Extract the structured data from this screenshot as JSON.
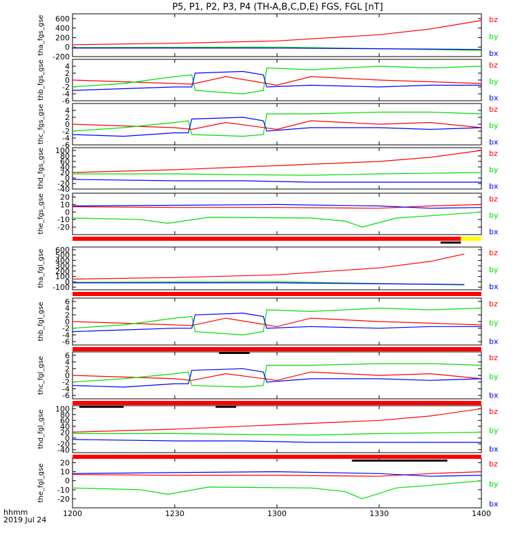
{
  "title": "P5, P1, P2, P3, P4 (TH-A,B,C,D,E) FGS, FGL [nT]",
  "xaxis": {
    "label_line1": "hhmm",
    "label_line2": "2019 Jul 24",
    "range_minutes": [
      720,
      840
    ],
    "ticks": [
      {
        "value": 720,
        "label": "1200"
      },
      {
        "value": 750,
        "label": "1230"
      },
      {
        "value": 780,
        "label": "1300"
      },
      {
        "value": 810,
        "label": "1330"
      },
      {
        "value": 840,
        "label": "1400"
      }
    ]
  },
  "colors": {
    "bx": "#0000ff",
    "by": "#00dd00",
    "bz": "#ff0000",
    "status_red": "#ff0000",
    "status_yellow": "#ffff00",
    "status_black": "#000000"
  },
  "chart_data": [
    {
      "type": "line",
      "ylabel": "tha_fgs_gse",
      "ylim": [
        -200,
        700
      ],
      "ticks": [
        {
          "v": 600,
          "l": "600"
        },
        {
          "v": 400,
          "l": "400"
        },
        {
          "v": 200,
          "l": "200"
        },
        {
          "v": 0,
          "l": "0"
        },
        {
          "v": -200,
          "l": "-200"
        }
      ],
      "series": [
        {
          "name": "bz",
          "color": "#ff0000",
          "x": [
            720,
            750,
            780,
            810,
            825,
            840
          ],
          "y": [
            50,
            80,
            130,
            260,
            380,
            560
          ]
        },
        {
          "name": "by",
          "color": "#00dd00",
          "x": [
            720,
            780,
            840
          ],
          "y": [
            -10,
            0,
            -70
          ]
        },
        {
          "name": "bx",
          "color": "#0000ff",
          "x": [
            720,
            780,
            840
          ],
          "y": [
            -20,
            -20,
            -50
          ]
        }
      ]
    },
    {
      "type": "line",
      "ylabel": "thb_fgs_gse",
      "ylim": [
        -6,
        6
      ],
      "ticks": [
        {
          "v": 4,
          "l": "4"
        },
        {
          "v": 2,
          "l": "2"
        },
        {
          "v": 0,
          "l": "0"
        },
        {
          "v": -2,
          "l": "-2"
        },
        {
          "v": -4,
          "l": "-4"
        },
        {
          "v": -6,
          "l": "-6"
        }
      ],
      "series": [
        {
          "name": "bz",
          "color": "#ff0000",
          "x": [
            720,
            735,
            750,
            755,
            765,
            780,
            790,
            800,
            810,
            825,
            840
          ],
          "y": [
            0,
            -0.5,
            -1,
            -1.2,
            1,
            -1.5,
            1,
            0.5,
            0,
            -0.5,
            -1
          ]
        },
        {
          "name": "by",
          "color": "#00dd00",
          "x": [
            720,
            735,
            750,
            755,
            756,
            770,
            776,
            777,
            790,
            810,
            825,
            840
          ],
          "y": [
            -2,
            -1,
            1,
            1.5,
            -3,
            -4,
            -3,
            3.5,
            3,
            4,
            3.5,
            4
          ]
        },
        {
          "name": "bx",
          "color": "#0000ff",
          "x": [
            720,
            735,
            750,
            755,
            756,
            770,
            776,
            777,
            790,
            810,
            825,
            840
          ],
          "y": [
            -3,
            -2.5,
            -2,
            -2,
            2,
            2.5,
            1.5,
            -2,
            -1.5,
            -2,
            -1.5,
            -1.5
          ]
        }
      ]
    },
    {
      "type": "line",
      "ylabel": "thc_fgs_gse",
      "ylim": [
        -6,
        6
      ],
      "ticks": [
        {
          "v": 4,
          "l": "4"
        },
        {
          "v": 2,
          "l": "2"
        },
        {
          "v": 0,
          "l": "0"
        },
        {
          "v": -2,
          "l": "-2"
        },
        {
          "v": -4,
          "l": "-4"
        },
        {
          "v": -6,
          "l": "-6"
        }
      ],
      "series": [
        {
          "name": "bz",
          "color": "#ff0000",
          "x": [
            720,
            735,
            750,
            755,
            765,
            780,
            790,
            800,
            810,
            825,
            840
          ],
          "y": [
            0,
            -0.5,
            -1,
            -1.5,
            0.5,
            -1.5,
            1,
            0.5,
            0,
            0.5,
            -1
          ]
        },
        {
          "name": "by",
          "color": "#00dd00",
          "x": [
            720,
            735,
            750,
            754,
            755,
            770,
            776,
            777,
            790,
            810,
            825,
            840
          ],
          "y": [
            -2,
            -1,
            0.5,
            1,
            -3,
            -3.5,
            -3,
            3,
            3,
            3.5,
            3.5,
            3
          ]
        },
        {
          "name": "bx",
          "color": "#0000ff",
          "x": [
            720,
            735,
            750,
            754,
            755,
            770,
            776,
            777,
            790,
            810,
            825,
            840
          ],
          "y": [
            -3,
            -3.5,
            -2.5,
            -2.5,
            1.5,
            2,
            1,
            -2,
            -1,
            -1,
            -1.5,
            -1
          ]
        }
      ]
    },
    {
      "type": "line",
      "ylabel": "thd_fgs_gse",
      "ylim": [
        -40,
        110
      ],
      "ticks": [
        {
          "v": 100,
          "l": "100"
        },
        {
          "v": 80,
          "l": "80"
        },
        {
          "v": 60,
          "l": "60"
        },
        {
          "v": 40,
          "l": "40"
        },
        {
          "v": 20,
          "l": "20"
        },
        {
          "v": 0,
          "l": "0"
        },
        {
          "v": -20,
          "l": "-20"
        },
        {
          "v": -40,
          "l": "-40"
        }
      ],
      "series": [
        {
          "name": "bz",
          "color": "#ff0000",
          "x": [
            720,
            750,
            780,
            810,
            825,
            840
          ],
          "y": [
            20,
            30,
            45,
            60,
            75,
            100
          ]
        },
        {
          "name": "by",
          "color": "#00dd00",
          "x": [
            720,
            750,
            770,
            790,
            810,
            840
          ],
          "y": [
            15,
            15,
            12,
            10,
            15,
            20
          ]
        },
        {
          "name": "bx",
          "color": "#0000ff",
          "x": [
            720,
            750,
            770,
            790,
            810,
            840
          ],
          "y": [
            -5,
            -10,
            -10,
            -15,
            -15,
            -15
          ]
        }
      ]
    },
    {
      "type": "line",
      "ylabel": "the_fgs_gse",
      "ylim": [
        -30,
        25
      ],
      "ticks": [
        {
          "v": 20,
          "l": "20"
        },
        {
          "v": 10,
          "l": "10"
        },
        {
          "v": 0,
          "l": "0"
        },
        {
          "v": -10,
          "l": "-10"
        },
        {
          "v": -20,
          "l": "-20"
        }
      ],
      "series": [
        {
          "name": "bz",
          "color": "#ff0000",
          "x": [
            720,
            750,
            780,
            810,
            825,
            840
          ],
          "y": [
            7,
            6,
            6,
            5,
            8,
            10
          ]
        },
        {
          "name": "by",
          "color": "#00dd00",
          "x": [
            720,
            740,
            748,
            760,
            790,
            800,
            805,
            815,
            825,
            840
          ],
          "y": [
            -8,
            -10,
            -15,
            -7,
            -8,
            -12,
            -20,
            -8,
            -5,
            0
          ]
        },
        {
          "name": "bx",
          "color": "#0000ff",
          "x": [
            720,
            750,
            780,
            810,
            825,
            840
          ],
          "y": [
            8,
            9,
            10,
            8,
            5,
            6
          ]
        }
      ]
    },
    {
      "type": "line",
      "ylabel": "tha_fgl_gse",
      "ylim": [
        -150,
        650
      ],
      "ticks": [
        {
          "v": 600,
          "l": "600"
        },
        {
          "v": 500,
          "l": "500"
        },
        {
          "v": 400,
          "l": "400"
        },
        {
          "v": 300,
          "l": "300"
        },
        {
          "v": 200,
          "l": "200"
        },
        {
          "v": 100,
          "l": "100"
        },
        {
          "v": 0,
          "l": "0"
        },
        {
          "v": -100,
          "l": "-100"
        }
      ],
      "series": [
        {
          "name": "bz",
          "color": "#ff0000",
          "x": [
            720,
            750,
            780,
            810,
            825,
            835
          ],
          "y": [
            50,
            80,
            130,
            260,
            380,
            520
          ]
        },
        {
          "name": "by",
          "color": "#00dd00",
          "x": [
            720,
            780,
            835
          ],
          "y": [
            -10,
            0,
            -60
          ]
        },
        {
          "name": "bx",
          "color": "#0000ff",
          "x": [
            720,
            780,
            835
          ],
          "y": [
            -20,
            -20,
            -50
          ]
        }
      ]
    },
    {
      "type": "line",
      "ylabel": "thb_fgl_gse",
      "ylim": [
        -7,
        7
      ],
      "ticks": [
        {
          "v": 6,
          "l": "6"
        },
        {
          "v": 4,
          "l": "4"
        },
        {
          "v": 2,
          "l": "2"
        },
        {
          "v": 0,
          "l": "0"
        },
        {
          "v": -2,
          "l": "-2"
        },
        {
          "v": -4,
          "l": "-4"
        },
        {
          "v": -6,
          "l": "-6"
        }
      ],
      "series": [
        {
          "name": "bz",
          "color": "#ff0000",
          "x": [
            720,
            735,
            750,
            755,
            765,
            780,
            790,
            800,
            810,
            825,
            840
          ],
          "y": [
            0,
            -0.5,
            -1,
            -1.2,
            1,
            -1.5,
            1,
            0.5,
            0,
            -0.5,
            -1
          ]
        },
        {
          "name": "by",
          "color": "#00dd00",
          "x": [
            720,
            735,
            750,
            755,
            756,
            770,
            776,
            777,
            790,
            810,
            825,
            840
          ],
          "y": [
            -2,
            -1,
            1,
            1.5,
            -3,
            -4,
            -3,
            3.5,
            3,
            4,
            3.5,
            4
          ]
        },
        {
          "name": "bx",
          "color": "#0000ff",
          "x": [
            720,
            735,
            750,
            755,
            756,
            770,
            776,
            777,
            790,
            810,
            825,
            840
          ],
          "y": [
            -3,
            -2.5,
            -2,
            -2,
            2,
            2.5,
            1.5,
            -2,
            -1.5,
            -2,
            -1.5,
            -1.5
          ]
        }
      ]
    },
    {
      "type": "line",
      "ylabel": "thc_fgl_gse",
      "ylim": [
        -7,
        7
      ],
      "ticks": [
        {
          "v": 6,
          "l": "6"
        },
        {
          "v": 4,
          "l": "4"
        },
        {
          "v": 2,
          "l": "2"
        },
        {
          "v": 0,
          "l": "0"
        },
        {
          "v": -2,
          "l": "-2"
        },
        {
          "v": -4,
          "l": "-4"
        },
        {
          "v": -6,
          "l": "-6"
        }
      ],
      "series": [
        {
          "name": "bz",
          "color": "#ff0000",
          "x": [
            720,
            735,
            750,
            755,
            765,
            780,
            790,
            800,
            810,
            825,
            840
          ],
          "y": [
            0,
            -0.5,
            -1,
            -1.5,
            0.5,
            -1.5,
            1,
            0.5,
            0,
            0.5,
            -1
          ]
        },
        {
          "name": "by",
          "color": "#00dd00",
          "x": [
            720,
            735,
            750,
            754,
            755,
            770,
            776,
            777,
            790,
            810,
            825,
            840
          ],
          "y": [
            -2,
            -1,
            0.5,
            1,
            -3,
            -3.5,
            -3,
            3,
            3,
            3.5,
            3.5,
            3
          ]
        },
        {
          "name": "bx",
          "color": "#0000ff",
          "x": [
            720,
            735,
            750,
            754,
            755,
            770,
            776,
            777,
            790,
            810,
            825,
            840
          ],
          "y": [
            -3,
            -3.5,
            -2.5,
            -2.5,
            1.5,
            2,
            1,
            -2,
            -1,
            -1,
            -1.5,
            -1
          ]
        }
      ]
    },
    {
      "type": "line",
      "ylabel": "thd_fgl_gse",
      "ylim": [
        -50,
        110
      ],
      "ticks": [
        {
          "v": 100,
          "l": "100"
        },
        {
          "v": 80,
          "l": "80"
        },
        {
          "v": 60,
          "l": "60"
        },
        {
          "v": 40,
          "l": "40"
        },
        {
          "v": 20,
          "l": "20"
        },
        {
          "v": 0,
          "l": "0"
        },
        {
          "v": -20,
          "l": "-20"
        },
        {
          "v": -40,
          "l": "-40"
        }
      ],
      "series": [
        {
          "name": "bz",
          "color": "#ff0000",
          "x": [
            720,
            750,
            780,
            810,
            825,
            840
          ],
          "y": [
            20,
            30,
            45,
            60,
            75,
            100
          ]
        },
        {
          "name": "by",
          "color": "#00dd00",
          "x": [
            720,
            750,
            770,
            790,
            810,
            840
          ],
          "y": [
            15,
            15,
            12,
            10,
            15,
            20
          ]
        },
        {
          "name": "bx",
          "color": "#0000ff",
          "x": [
            720,
            750,
            770,
            790,
            810,
            840
          ],
          "y": [
            -5,
            -10,
            -10,
            -15,
            -15,
            -15
          ]
        }
      ]
    },
    {
      "type": "line",
      "ylabel": "the_fgl_gse",
      "ylim": [
        -30,
        25
      ],
      "ticks": [
        {
          "v": 20,
          "l": "20"
        },
        {
          "v": 10,
          "l": "10"
        },
        {
          "v": 0,
          "l": "0"
        },
        {
          "v": -10,
          "l": "-10"
        },
        {
          "v": -20,
          "l": "-20"
        }
      ],
      "series": [
        {
          "name": "bz",
          "color": "#ff0000",
          "x": [
            720,
            750,
            780,
            810,
            825,
            840
          ],
          "y": [
            7,
            6,
            6,
            5,
            8,
            10
          ]
        },
        {
          "name": "by",
          "color": "#00dd00",
          "x": [
            720,
            740,
            748,
            760,
            790,
            800,
            805,
            815,
            825,
            840
          ],
          "y": [
            -8,
            -10,
            -15,
            -7,
            -8,
            -12,
            -20,
            -8,
            -5,
            0
          ]
        },
        {
          "name": "bx",
          "color": "#0000ff",
          "x": [
            720,
            750,
            780,
            810,
            825,
            840
          ],
          "y": [
            8,
            9,
            10,
            8,
            5,
            6
          ]
        }
      ]
    }
  ],
  "status_bars": [
    {
      "after_panel": 4,
      "segments": [
        {
          "x0": 720,
          "x1": 834,
          "color": "#ff0000"
        },
        {
          "x0": 834,
          "x1": 840,
          "color": "#ffff00"
        }
      ],
      "marks": [
        {
          "x0": 828,
          "x1": 834
        }
      ]
    },
    {
      "after_panel": 5,
      "segments": [
        {
          "x0": 720,
          "x1": 840,
          "color": "#ff0000"
        }
      ],
      "marks": []
    },
    {
      "after_panel": 6,
      "segments": [
        {
          "x0": 720,
          "x1": 840,
          "color": "#ff0000"
        }
      ],
      "marks": [
        {
          "x0": 763,
          "x1": 772
        }
      ]
    },
    {
      "after_panel": 7,
      "segments": [
        {
          "x0": 720,
          "x1": 840,
          "color": "#ff0000"
        }
      ],
      "marks": [
        {
          "x0": 722,
          "x1": 735
        },
        {
          "x0": 762,
          "x1": 768
        }
      ]
    },
    {
      "after_panel": 8,
      "segments": [
        {
          "x0": 720,
          "x1": 840,
          "color": "#ff0000"
        }
      ],
      "marks": [
        {
          "x0": 802,
          "x1": 830
        }
      ]
    }
  ]
}
